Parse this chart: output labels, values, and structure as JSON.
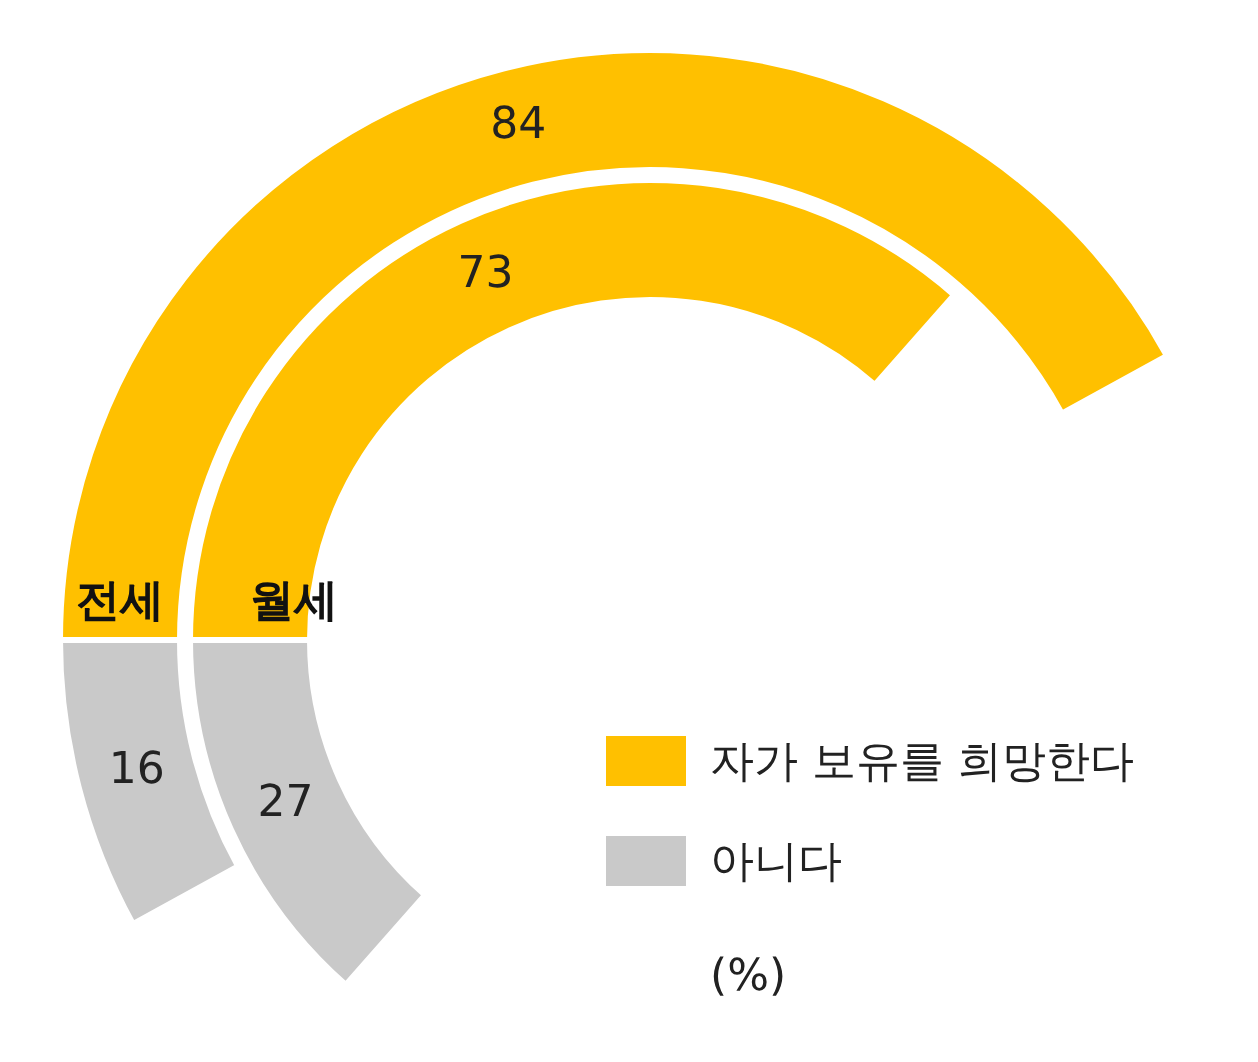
{
  "chart_data": [
    {
      "type": "donut",
      "title": "전세",
      "categories": [
        null,
        null
      ],
      "colors": [
        "#ffc000",
        "#c9c9c9"
      ],
      "values": [
        84,
        16
      ],
      "data_labels": true
    },
    {
      "type": "donut",
      "title": "월세",
      "categories": [
        "자가 보유를 희망한다",
        "아니다"
      ],
      "colors": [
        "#ffc000",
        "#c9c9c9"
      ],
      "values": [
        73,
        27
      ],
      "data_labels": true,
      "legend": "bottom right",
      "annotations": [
        "(%)"
      ]
    }
  ]
}
